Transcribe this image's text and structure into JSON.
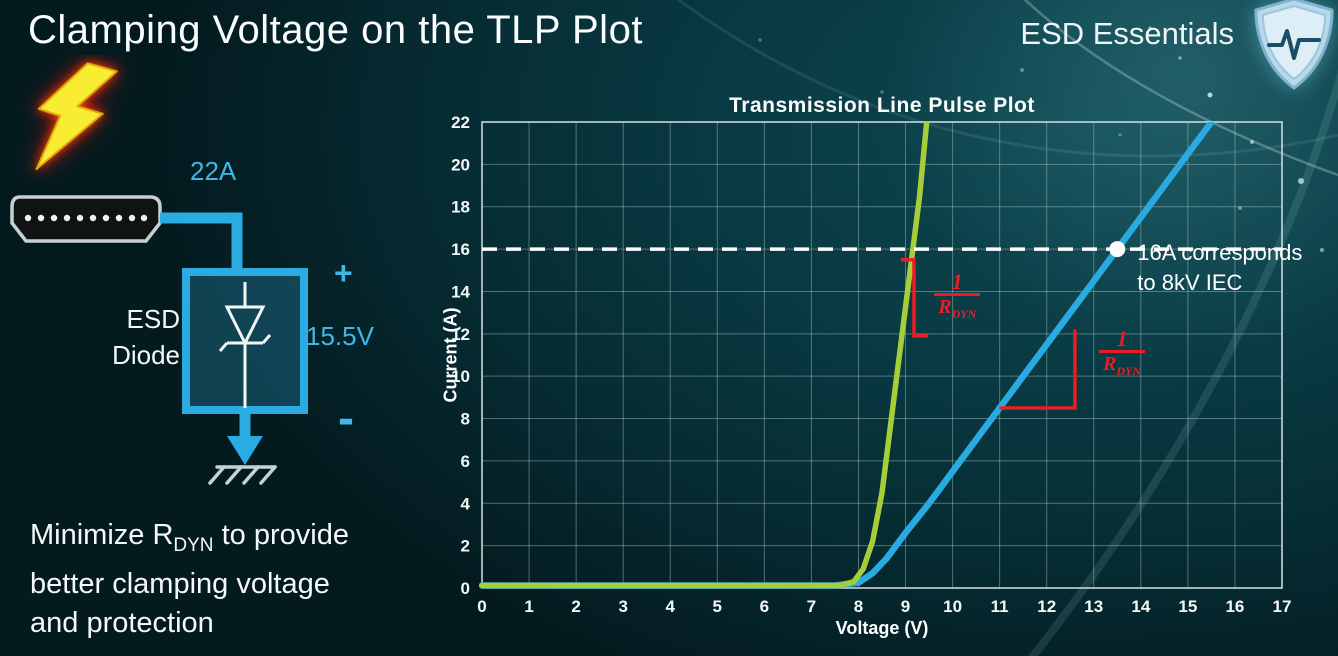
{
  "slide": {
    "title": "Clamping Voltage on the TLP Plot",
    "brand": "ESD Essentials"
  },
  "diagram": {
    "surge_current": "22A",
    "device_line1": "ESD",
    "device_line2": "Diode",
    "plus_sign": "+",
    "clamp_voltage": "15.5V",
    "minus_sign": "-"
  },
  "note": {
    "line1_pre": "Minimize R",
    "line1_sub": "DYN",
    "line1_post": " to provide",
    "line2": "better clamping voltage",
    "line3": "and protection"
  },
  "chart_data": {
    "type": "line",
    "title": "Transmission Line Pulse Plot",
    "xlabel": "Voltage (V)",
    "ylabel": "Current (A)",
    "xlim": [
      0,
      17
    ],
    "ylim": [
      0,
      22
    ],
    "xticks": [
      0,
      1,
      2,
      3,
      4,
      5,
      6,
      7,
      8,
      9,
      10,
      11,
      12,
      13,
      14,
      15,
      16,
      17
    ],
    "yticks": [
      0,
      2,
      4,
      6,
      8,
      10,
      12,
      14,
      16,
      18,
      20,
      22
    ],
    "grid": true,
    "legend": "none",
    "series": [
      {
        "name": "blue-curve-higher-rdyn",
        "color": "#29abe2",
        "width": 6.5,
        "points": [
          [
            0,
            0.12
          ],
          [
            7.5,
            0.12
          ],
          [
            8.0,
            0.25
          ],
          [
            8.3,
            0.7
          ],
          [
            8.6,
            1.4
          ],
          [
            9.0,
            2.6
          ],
          [
            9.5,
            4.0
          ],
          [
            10.5,
            7.0
          ],
          [
            11,
            8.5
          ],
          [
            12,
            11.5
          ],
          [
            13,
            14.5
          ],
          [
            13.5,
            16
          ],
          [
            14.5,
            19
          ],
          [
            15.5,
            22
          ]
        ]
      },
      {
        "name": "green-curve-lower-rdyn",
        "color": "#a6ce39",
        "width": 5.5,
        "points": [
          [
            0,
            0.12
          ],
          [
            7.6,
            0.12
          ],
          [
            7.9,
            0.3
          ],
          [
            8.1,
            0.9
          ],
          [
            8.3,
            2.2
          ],
          [
            8.5,
            4.5
          ],
          [
            8.7,
            8.0
          ],
          [
            8.9,
            11.5
          ],
          [
            9.1,
            15.0
          ],
          [
            9.3,
            18.5
          ],
          [
            9.45,
            22
          ]
        ]
      }
    ],
    "reference_line": {
      "y": 16,
      "color": "#ffffff",
      "dash": [
        15,
        9
      ]
    },
    "marker": {
      "x": 13.5,
      "y": 16,
      "label_line1": "16A corresponds",
      "label_line2": "to 8kV IEC"
    },
    "annotation_color": "#ed1c24",
    "slope_annotations": [
      {
        "path": [
          [
            8.9,
            15.5
          ],
          [
            9.18,
            15.5
          ],
          [
            9.18,
            11.9
          ],
          [
            9.48,
            11.9
          ]
        ],
        "fraction": {
          "x": 10.1,
          "y": 13.7
        }
      },
      {
        "path": [
          [
            11.0,
            8.5
          ],
          [
            12.6,
            8.5
          ],
          [
            12.6,
            12.2
          ]
        ],
        "fraction": {
          "x": 13.6,
          "y": 11.0
        }
      }
    ],
    "fraction_label": {
      "numerator": "1",
      "denominator_base": "R",
      "denominator_sub": "DYN"
    }
  }
}
